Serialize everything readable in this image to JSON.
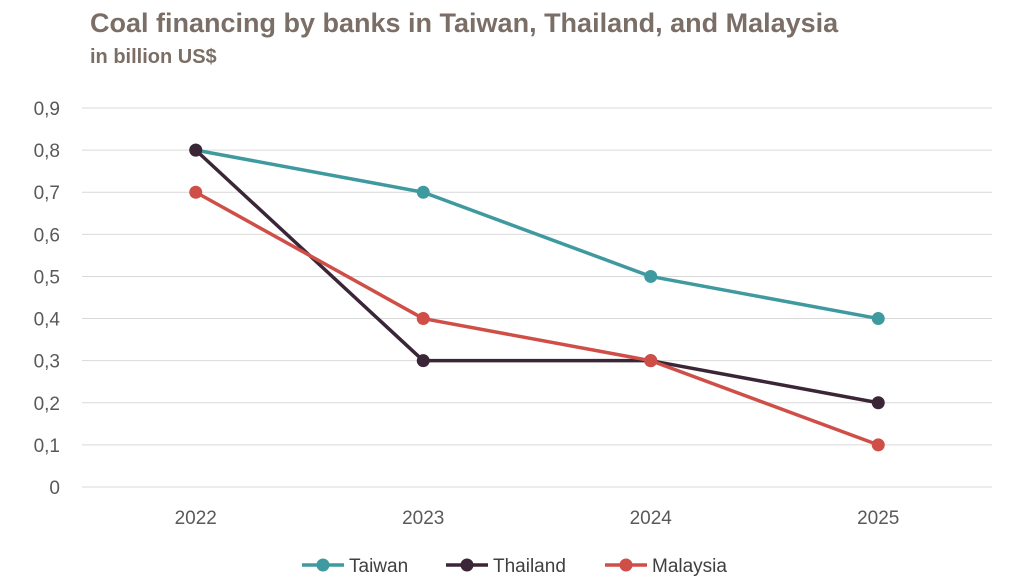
{
  "chart_data": {
    "type": "line",
    "title": "Coal financing by banks in Taiwan, Thailand, and Malaysia",
    "subtitle": "in billion US$",
    "categories": [
      "2022",
      "2023",
      "2024",
      "2025"
    ],
    "ylim": [
      0,
      0.9
    ],
    "yticks": [
      "0",
      "0,1",
      "0,2",
      "0,3",
      "0,4",
      "0,5",
      "0,6",
      "0,7",
      "0,8",
      "0,9"
    ],
    "grid": true,
    "legend_position": "bottom",
    "series": [
      {
        "name": "Taiwan",
        "color": "#3f9aa0",
        "values": [
          0.8,
          0.7,
          0.5,
          0.4
        ]
      },
      {
        "name": "Thailand",
        "color": "#3a2637",
        "values": [
          0.8,
          0.3,
          0.3,
          0.2
        ]
      },
      {
        "name": "Malaysia",
        "color": "#cf4f48",
        "values": [
          0.7,
          0.4,
          0.3,
          0.1
        ]
      }
    ]
  }
}
